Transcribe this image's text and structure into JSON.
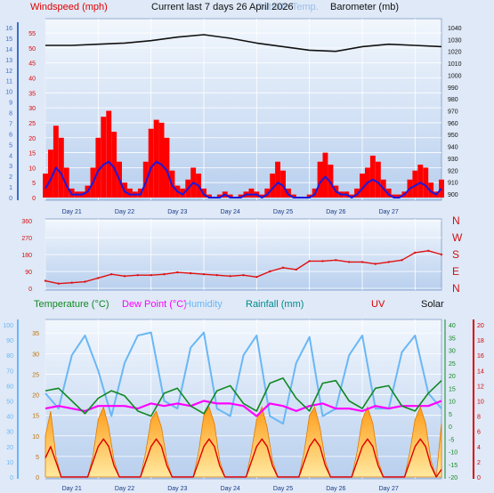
{
  "header": {
    "title": "Current last 7 days 26 April 2026",
    "windspeed_label": "Windspeed (mph)",
    "outside_temp_label": "Outside Temp.",
    "barometer_label": "Barometer (mb)"
  },
  "colors": {
    "page_bg": "#dfe9f7",
    "plot_bg_top": "#f2f7fd",
    "plot_bg_bottom": "#b8cfee",
    "grid": "#ffffff",
    "wind_gust": "#ff0000",
    "wind_avg": "#1a1adc",
    "barometer": "#111111",
    "direction": "#e01010",
    "temperature": "#118822",
    "dewpoint": "#ff00ff",
    "humidity": "#6ab7f5",
    "rainfall": "#008b8b",
    "uv": "#dd0000",
    "solar_fill": "#ffb400",
    "solar_edge": "#e07a00",
    "left_axis": "#3a6fd0",
    "direction_axis": "#d01010"
  },
  "chart_data": [
    {
      "id": "wind-barometer",
      "type": "line",
      "title": "Current last 7 days 26 April 2026",
      "x_labels": [
        "Day 21",
        "Day 22",
        "Day 23",
        "Day 24",
        "Day 25",
        "Day 26",
        "Day 27"
      ],
      "y_left_outer": {
        "label": "",
        "ticks": [
          0,
          1,
          2,
          3,
          4,
          5,
          6,
          7,
          8,
          9,
          10,
          11,
          12,
          13,
          14,
          15,
          16
        ],
        "ylim": [
          0,
          16
        ]
      },
      "y_left_inner": {
        "label": "Windspeed (mph)",
        "ticks": [
          0,
          5,
          10,
          15,
          20,
          25,
          30,
          35,
          40,
          45,
          50,
          55
        ],
        "ylim": [
          0,
          58
        ]
      },
      "y_right": {
        "label": "Barometer (mb)",
        "ticks": [
          900,
          910,
          920,
          930,
          940,
          950,
          960,
          970,
          980,
          990,
          1000,
          1010,
          1020,
          1030,
          1040
        ],
        "ylim": [
          897,
          1043
        ]
      },
      "series": [
        {
          "name": "Windspeed (mph)",
          "role": "gust",
          "axis": "left_inner",
          "x": [
            0,
            0.1,
            0.2,
            0.3,
            0.4,
            0.5,
            0.6,
            0.7,
            0.8,
            0.9,
            1,
            1.1,
            1.2,
            1.3,
            1.4,
            1.5,
            1.6,
            1.7,
            1.8,
            1.9,
            2,
            2.1,
            2.2,
            2.3,
            2.4,
            2.5,
            2.6,
            2.7,
            2.8,
            2.9,
            3,
            3.1,
            3.2,
            3.3,
            3.4,
            3.5,
            3.6,
            3.7,
            3.8,
            3.9,
            4,
            4.1,
            4.2,
            4.3,
            4.4,
            4.5,
            4.6,
            4.7,
            4.8,
            4.9,
            5,
            5.1,
            5.2,
            5.3,
            5.4,
            5.5,
            5.6,
            5.7,
            5.8,
            5.9,
            6,
            6.1,
            6.2,
            6.3,
            6.4,
            6.5,
            6.6,
            6.7,
            6.8,
            6.9,
            7,
            7.1,
            7.2,
            7.3,
            7.4,
            7.5
          ],
          "values": [
            8,
            16,
            24,
            20,
            10,
            3,
            2,
            2,
            4,
            10,
            20,
            27,
            29,
            22,
            12,
            5,
            3,
            2,
            3,
            12,
            23,
            26,
            25,
            20,
            9,
            4,
            3,
            6,
            10,
            8,
            3,
            1,
            0,
            1,
            2,
            1,
            0,
            1,
            2,
            3,
            2,
            1,
            3,
            8,
            12,
            9,
            3,
            1,
            0,
            0,
            1,
            3,
            12,
            15,
            11,
            4,
            2,
            2,
            1,
            3,
            8,
            10,
            14,
            12,
            6,
            3,
            1,
            1,
            2,
            6,
            9,
            11,
            10,
            5,
            2,
            6
          ]
        },
        {
          "name": "Wind average",
          "role": "average",
          "axis": "left_inner",
          "x": [
            0,
            0.1,
            0.2,
            0.3,
            0.4,
            0.5,
            0.6,
            0.7,
            0.8,
            0.9,
            1,
            1.1,
            1.2,
            1.3,
            1.4,
            1.5,
            1.6,
            1.7,
            1.8,
            1.9,
            2,
            2.1,
            2.2,
            2.3,
            2.4,
            2.5,
            2.6,
            2.7,
            2.8,
            2.9,
            3,
            3.1,
            3.2,
            3.3,
            3.4,
            3.5,
            3.6,
            3.7,
            3.8,
            3.9,
            4,
            4.1,
            4.2,
            4.3,
            4.4,
            4.5,
            4.6,
            4.7,
            4.8,
            4.9,
            5,
            5.1,
            5.2,
            5.3,
            5.4,
            5.5,
            5.6,
            5.7,
            5.8,
            5.9,
            6,
            6.1,
            6.2,
            6.3,
            6.4,
            6.5,
            6.6,
            6.7,
            6.8,
            6.9,
            7,
            7.1,
            7.2,
            7.3,
            7.4,
            7.5
          ],
          "values": [
            3,
            6,
            10,
            8,
            4,
            1,
            1,
            1,
            2,
            5,
            9,
            11,
            12,
            10,
            6,
            2,
            1,
            1,
            1,
            5,
            10,
            12,
            11,
            9,
            4,
            2,
            1,
            3,
            5,
            4,
            1,
            0,
            0,
            0,
            1,
            0,
            0,
            0,
            1,
            1,
            1,
            0,
            1,
            3,
            5,
            4,
            1,
            0,
            0,
            0,
            0,
            1,
            5,
            7,
            5,
            2,
            1,
            1,
            0,
            1,
            3,
            5,
            6,
            5,
            3,
            1,
            0,
            0,
            1,
            3,
            4,
            5,
            4,
            2,
            1,
            3
          ]
        },
        {
          "name": "Barometer (mb)",
          "axis": "right",
          "x": [
            0,
            0.5,
            1,
            1.5,
            2,
            2.5,
            3,
            3.5,
            4,
            4.5,
            5,
            5.5,
            6,
            6.5,
            7,
            7.5
          ],
          "values": [
            1025,
            1025,
            1026,
            1027,
            1029,
            1032,
            1034,
            1031,
            1027,
            1024,
            1021,
            1020,
            1024,
            1026,
            1025,
            1024
          ]
        }
      ]
    },
    {
      "id": "wind-direction",
      "type": "scatter",
      "title": "",
      "x_labels": [
        "Day 21",
        "Day 22",
        "Day 23",
        "Day 24",
        "Day 25",
        "Day 26",
        "Day 27"
      ],
      "y_left": {
        "ticks": [
          0,
          90,
          180,
          270,
          360
        ],
        "ylim": [
          0,
          360
        ]
      },
      "y_right": {
        "ticks": [
          "N",
          "E",
          "S",
          "W",
          "N"
        ]
      },
      "series": [
        {
          "name": "Wind direction",
          "x": [
            0,
            0.25,
            0.5,
            0.75,
            1,
            1.25,
            1.5,
            1.75,
            2,
            2.25,
            2.5,
            2.75,
            3,
            3.25,
            3.5,
            3.75,
            4,
            4.25,
            4.5,
            4.75,
            5,
            5.25,
            5.5,
            5.75,
            6,
            6.25,
            6.5,
            6.75,
            7,
            7.25,
            7.5
          ],
          "values": [
            40,
            25,
            30,
            35,
            55,
            75,
            65,
            70,
            70,
            75,
            85,
            80,
            75,
            70,
            65,
            70,
            60,
            90,
            110,
            100,
            145,
            145,
            150,
            140,
            140,
            130,
            140,
            150,
            190,
            200,
            180
          ]
        }
      ]
    },
    {
      "id": "temp-solar",
      "type": "line",
      "title": "",
      "legend": [
        "Temperature (°C)",
        "Dew Point (°C)",
        "Humidity",
        "Rainfall (mm)",
        "UV",
        "Solar"
      ],
      "x_labels": [
        "Day 21",
        "Day 22",
        "Day 23",
        "Day 24",
        "Day 25",
        "Day 26",
        "Day 27"
      ],
      "y_left_outer": {
        "ticks": [
          0,
          10,
          20,
          30,
          40,
          50,
          60,
          70,
          80,
          90,
          100
        ],
        "ylim": [
          0,
          100
        ]
      },
      "y_left_inner": {
        "ticks": [
          0,
          5,
          10,
          15,
          20,
          25,
          30,
          35
        ],
        "ylim": [
          0,
          37
        ]
      },
      "y_right_inner": {
        "ticks": [
          -20,
          -15,
          -10,
          -5,
          0,
          5,
          10,
          15,
          20,
          25,
          30,
          35,
          40
        ],
        "ylim": [
          -20,
          40
        ]
      },
      "y_right_outer": {
        "ticks": [
          0,
          2,
          4,
          6,
          8,
          10,
          12,
          14,
          16,
          18,
          20
        ],
        "ylim": [
          0,
          20
        ]
      },
      "series": [
        {
          "name": "Temperature (°C)",
          "axis": "right_inner",
          "x": [
            0,
            0.25,
            0.5,
            0.75,
            1,
            1.25,
            1.5,
            1.75,
            2,
            2.25,
            2.5,
            2.75,
            3,
            3.25,
            3.5,
            3.75,
            4,
            4.25,
            4.5,
            4.75,
            5,
            5.25,
            5.5,
            5.75,
            6,
            6.25,
            6.5,
            6.75,
            7,
            7.25,
            7.5
          ],
          "values": [
            14,
            15,
            10,
            5,
            11,
            14,
            12,
            6,
            4,
            13,
            15,
            8,
            5,
            14,
            16,
            9,
            6,
            17,
            19,
            11,
            6,
            17,
            18,
            10,
            7,
            15,
            16,
            8,
            6,
            13,
            18
          ]
        },
        {
          "name": "Dew Point (°C)",
          "axis": "right_inner",
          "x": [
            0,
            0.25,
            0.5,
            0.75,
            1,
            1.25,
            1.5,
            1.75,
            2,
            2.25,
            2.5,
            2.75,
            3,
            3.25,
            3.5,
            3.75,
            4,
            4.25,
            4.5,
            4.75,
            5,
            5.25,
            5.5,
            5.75,
            6,
            6.25,
            6.5,
            6.75,
            7,
            7.25,
            7.5
          ],
          "values": [
            7,
            8,
            7,
            6,
            8,
            8,
            8,
            7,
            9,
            8,
            9,
            8,
            10,
            9,
            9,
            8,
            4,
            9,
            8,
            6,
            8,
            9,
            7,
            7,
            6,
            8,
            7,
            8,
            8,
            8,
            10
          ]
        },
        {
          "name": "Humidity",
          "axis": "left_outer",
          "x": [
            0,
            0.25,
            0.5,
            0.75,
            1,
            1.25,
            1.5,
            1.75,
            2,
            2.25,
            2.5,
            2.75,
            3,
            3.25,
            3.5,
            3.75,
            4,
            4.25,
            4.5,
            4.75,
            5,
            5.25,
            5.5,
            5.75,
            6,
            6.25,
            6.5,
            6.75,
            7,
            7.25,
            7.5
          ],
          "values": [
            55,
            45,
            80,
            93,
            70,
            40,
            75,
            93,
            95,
            50,
            45,
            85,
            95,
            45,
            40,
            80,
            93,
            40,
            35,
            75,
            92,
            40,
            45,
            80,
            93,
            45,
            45,
            82,
            93,
            55,
            45
          ]
        },
        {
          "name": "UV",
          "axis": "right_outer",
          "x": [
            0,
            0.1,
            0.2,
            0.3,
            0.4,
            0.5,
            0.6,
            0.7,
            0.8,
            0.9,
            1,
            1.1,
            1.2,
            1.3,
            1.4,
            1.5,
            1.6,
            1.7,
            1.8,
            1.9,
            2,
            2.1,
            2.2,
            2.3,
            2.4,
            2.5,
            2.6,
            2.7,
            2.8,
            2.9,
            3,
            3.1,
            3.2,
            3.3,
            3.4,
            3.5,
            3.6,
            3.7,
            3.8,
            3.9,
            4,
            4.1,
            4.2,
            4.3,
            4.4,
            4.5,
            4.6,
            4.7,
            4.8,
            4.9,
            5,
            5.1,
            5.2,
            5.3,
            5.4,
            5.5,
            5.6,
            5.7,
            5.8,
            5.9,
            6,
            6.1,
            6.2,
            6.3,
            6.4,
            6.5,
            6.6,
            6.7,
            6.8,
            6.9,
            7,
            7.1,
            7.2,
            7.3,
            7.4,
            7.5
          ],
          "values": [
            2.5,
            4,
            2,
            0,
            0,
            0,
            0,
            0,
            0,
            2,
            4,
            5,
            4,
            1.5,
            0,
            0,
            0,
            0,
            0,
            2,
            4,
            5,
            4,
            1.5,
            0,
            0,
            0,
            0,
            0,
            2,
            4,
            5,
            4,
            1.5,
            0,
            0,
            0,
            0,
            0,
            2,
            4,
            5,
            4,
            1.5,
            0,
            0,
            0,
            0,
            0,
            2,
            4,
            5,
            4,
            1.5,
            0,
            0,
            0,
            0,
            0,
            2,
            4,
            5,
            4,
            1.5,
            0,
            0,
            0,
            0,
            0,
            2,
            4,
            5,
            4,
            1.5,
            0,
            1
          ]
        },
        {
          "name": "Solar",
          "axis": "left_inner",
          "x": [
            0,
            0.1,
            0.2,
            0.3,
            0.4,
            0.5,
            0.6,
            0.7,
            0.8,
            0.9,
            1,
            1.1,
            1.2,
            1.3,
            1.4,
            1.5,
            1.6,
            1.7,
            1.8,
            1.9,
            2,
            2.1,
            2.2,
            2.3,
            2.4,
            2.5,
            2.6,
            2.7,
            2.8,
            2.9,
            3,
            3.1,
            3.2,
            3.3,
            3.4,
            3.5,
            3.6,
            3.7,
            3.8,
            3.9,
            4,
            4.1,
            4.2,
            4.3,
            4.4,
            4.5,
            4.6,
            4.7,
            4.8,
            4.9,
            5,
            5.1,
            5.2,
            5.3,
            5.4,
            5.5,
            5.6,
            5.7,
            5.8,
            5.9,
            6,
            6.1,
            6.2,
            6.3,
            6.4,
            6.5,
            6.6,
            6.7,
            6.8,
            6.9,
            7,
            7.1,
            7.2,
            7.3,
            7.4,
            7.5
          ],
          "values": [
            10,
            16,
            5,
            0,
            0,
            0,
            0,
            0,
            0,
            5,
            14,
            17,
            12,
            4,
            0,
            0,
            0,
            0,
            0,
            6,
            14,
            16,
            12,
            4,
            0,
            0,
            0,
            0,
            0,
            6,
            15,
            17,
            13,
            4,
            0,
            0,
            0,
            0,
            0,
            6,
            14,
            17,
            12,
            4,
            0,
            0,
            0,
            0,
            0,
            6,
            15,
            17,
            12,
            4,
            0,
            0,
            0,
            0,
            0,
            6,
            14,
            17,
            13,
            4,
            0,
            0,
            0,
            0,
            0,
            6,
            14,
            17,
            13,
            4,
            0,
            13
          ]
        }
      ]
    }
  ]
}
